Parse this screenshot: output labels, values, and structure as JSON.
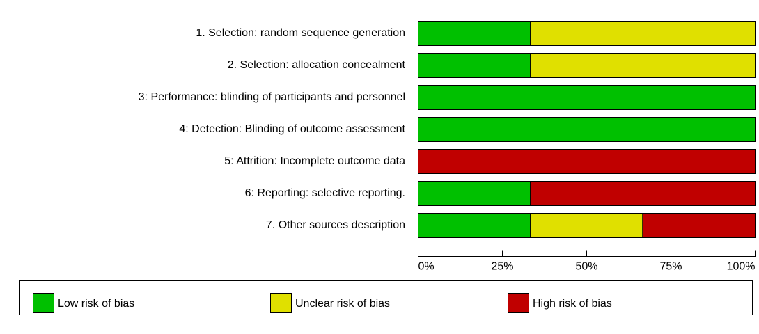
{
  "chart_data": {
    "type": "stacked-barh",
    "categories": [
      "1. Selection: random sequence generation",
      "2. Selection: allocation concealment",
      "3: Performance: blinding of participants and personnel",
      "4: Detection: Blinding of outcome assessment",
      "5: Attrition: Incomplete outcome data",
      "6: Reporting: selective reporting.",
      "7. Other sources description"
    ],
    "series": [
      {
        "name": "Low risk of bias",
        "color": "#00c000",
        "values": [
          33.3,
          33.3,
          100,
          100,
          0,
          33.3,
          33.3
        ]
      },
      {
        "name": "Unclear risk of bias",
        "color": "#e0e000",
        "values": [
          66.7,
          66.7,
          0,
          0,
          0,
          0,
          33.3
        ]
      },
      {
        "name": "High risk of bias",
        "color": "#c00000",
        "values": [
          0,
          0,
          0,
          0,
          100,
          66.7,
          33.4
        ]
      }
    ],
    "xlim": [
      0,
      100
    ],
    "xticks": [
      {
        "value": 0,
        "label": "0%"
      },
      {
        "value": 25,
        "label": "25%"
      },
      {
        "value": 50,
        "label": "50%"
      },
      {
        "value": 75,
        "label": "75%"
      },
      {
        "value": 100,
        "label": "100%"
      }
    ]
  }
}
